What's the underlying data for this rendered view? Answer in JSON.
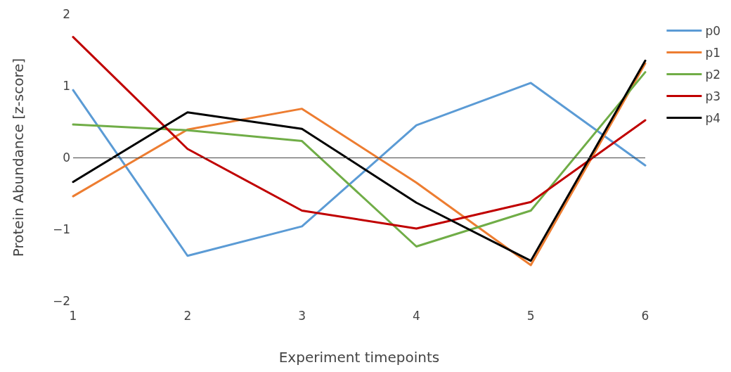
{
  "chart_data": {
    "type": "line",
    "xlabel": "Experiment timepoints",
    "ylabel": "Protein Abundance [z-score]",
    "x": [
      1,
      2,
      3,
      4,
      5,
      6
    ],
    "series": [
      {
        "name": "p0",
        "color": "#5b9bd5",
        "values": [
          0.94,
          -1.37,
          -0.96,
          0.45,
          1.04,
          -0.11
        ]
      },
      {
        "name": "p1",
        "color": "#ed7d31",
        "values": [
          -0.54,
          0.39,
          0.68,
          -0.35,
          -1.5,
          1.31
        ]
      },
      {
        "name": "p2",
        "color": "#70ad47",
        "values": [
          0.46,
          0.38,
          0.23,
          -1.24,
          -0.74,
          1.19
        ]
      },
      {
        "name": "p3",
        "color": "#c00000",
        "values": [
          1.68,
          0.12,
          -0.74,
          -0.99,
          -0.62,
          0.52
        ]
      },
      {
        "name": "p4",
        "color": "#000000",
        "values": [
          -0.34,
          0.63,
          0.4,
          -0.63,
          -1.44,
          1.35
        ]
      }
    ],
    "xlim": [
      1,
      6
    ],
    "xticks": [
      1,
      2,
      3,
      4,
      5,
      6
    ],
    "ylim": [
      -2,
      2
    ],
    "yticks": [
      {
        "value": -2,
        "label": "−2"
      },
      {
        "value": -1,
        "label": "−1"
      },
      0,
      1,
      2
    ],
    "ref_lines": [
      {
        "axis": "y",
        "value": 0,
        "color": "#444444"
      }
    ],
    "grid": false,
    "legend": "top right",
    "marker": "none",
    "line_style": "solid"
  }
}
